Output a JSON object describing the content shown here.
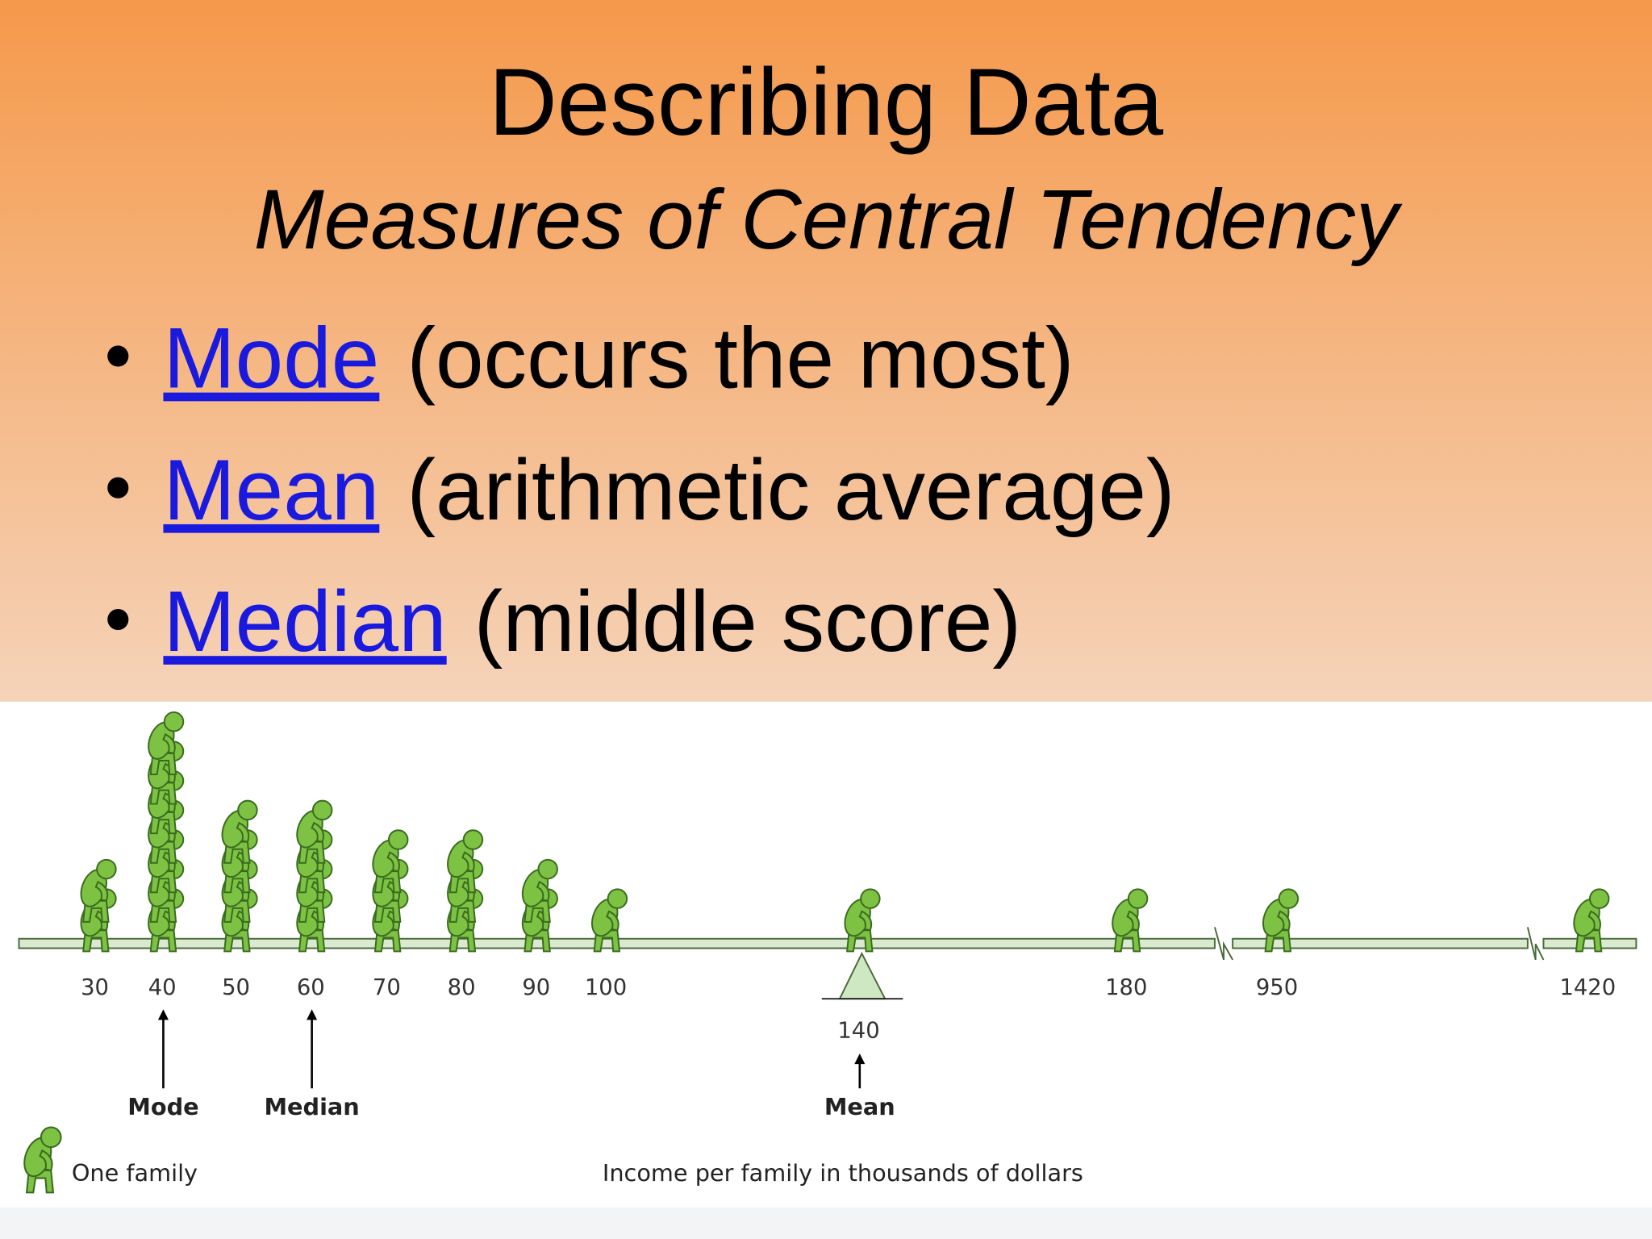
{
  "header": {
    "title": "Describing Data",
    "subtitle": "Measures of Central Tendency"
  },
  "bullets": [
    {
      "term": "Mode",
      "desc": "(occurs the most)"
    },
    {
      "term": "Mean",
      "desc": "(arithmetic average)"
    },
    {
      "term": "Median",
      "desc": "(middle score)"
    }
  ],
  "chart_data": {
    "type": "pictograph",
    "categories": [
      "30",
      "40",
      "50",
      "60",
      "70",
      "80",
      "90",
      "100",
      "140",
      "180",
      "950",
      "1420"
    ],
    "values": [
      2,
      7,
      4,
      4,
      3,
      3,
      2,
      1,
      1,
      1,
      1,
      1
    ],
    "color": "#7dc242",
    "annotations": [
      "Mode",
      "Median",
      "Mean"
    ],
    "legend": "One family",
    "x_label": "Income per family in thousands of dollars"
  }
}
